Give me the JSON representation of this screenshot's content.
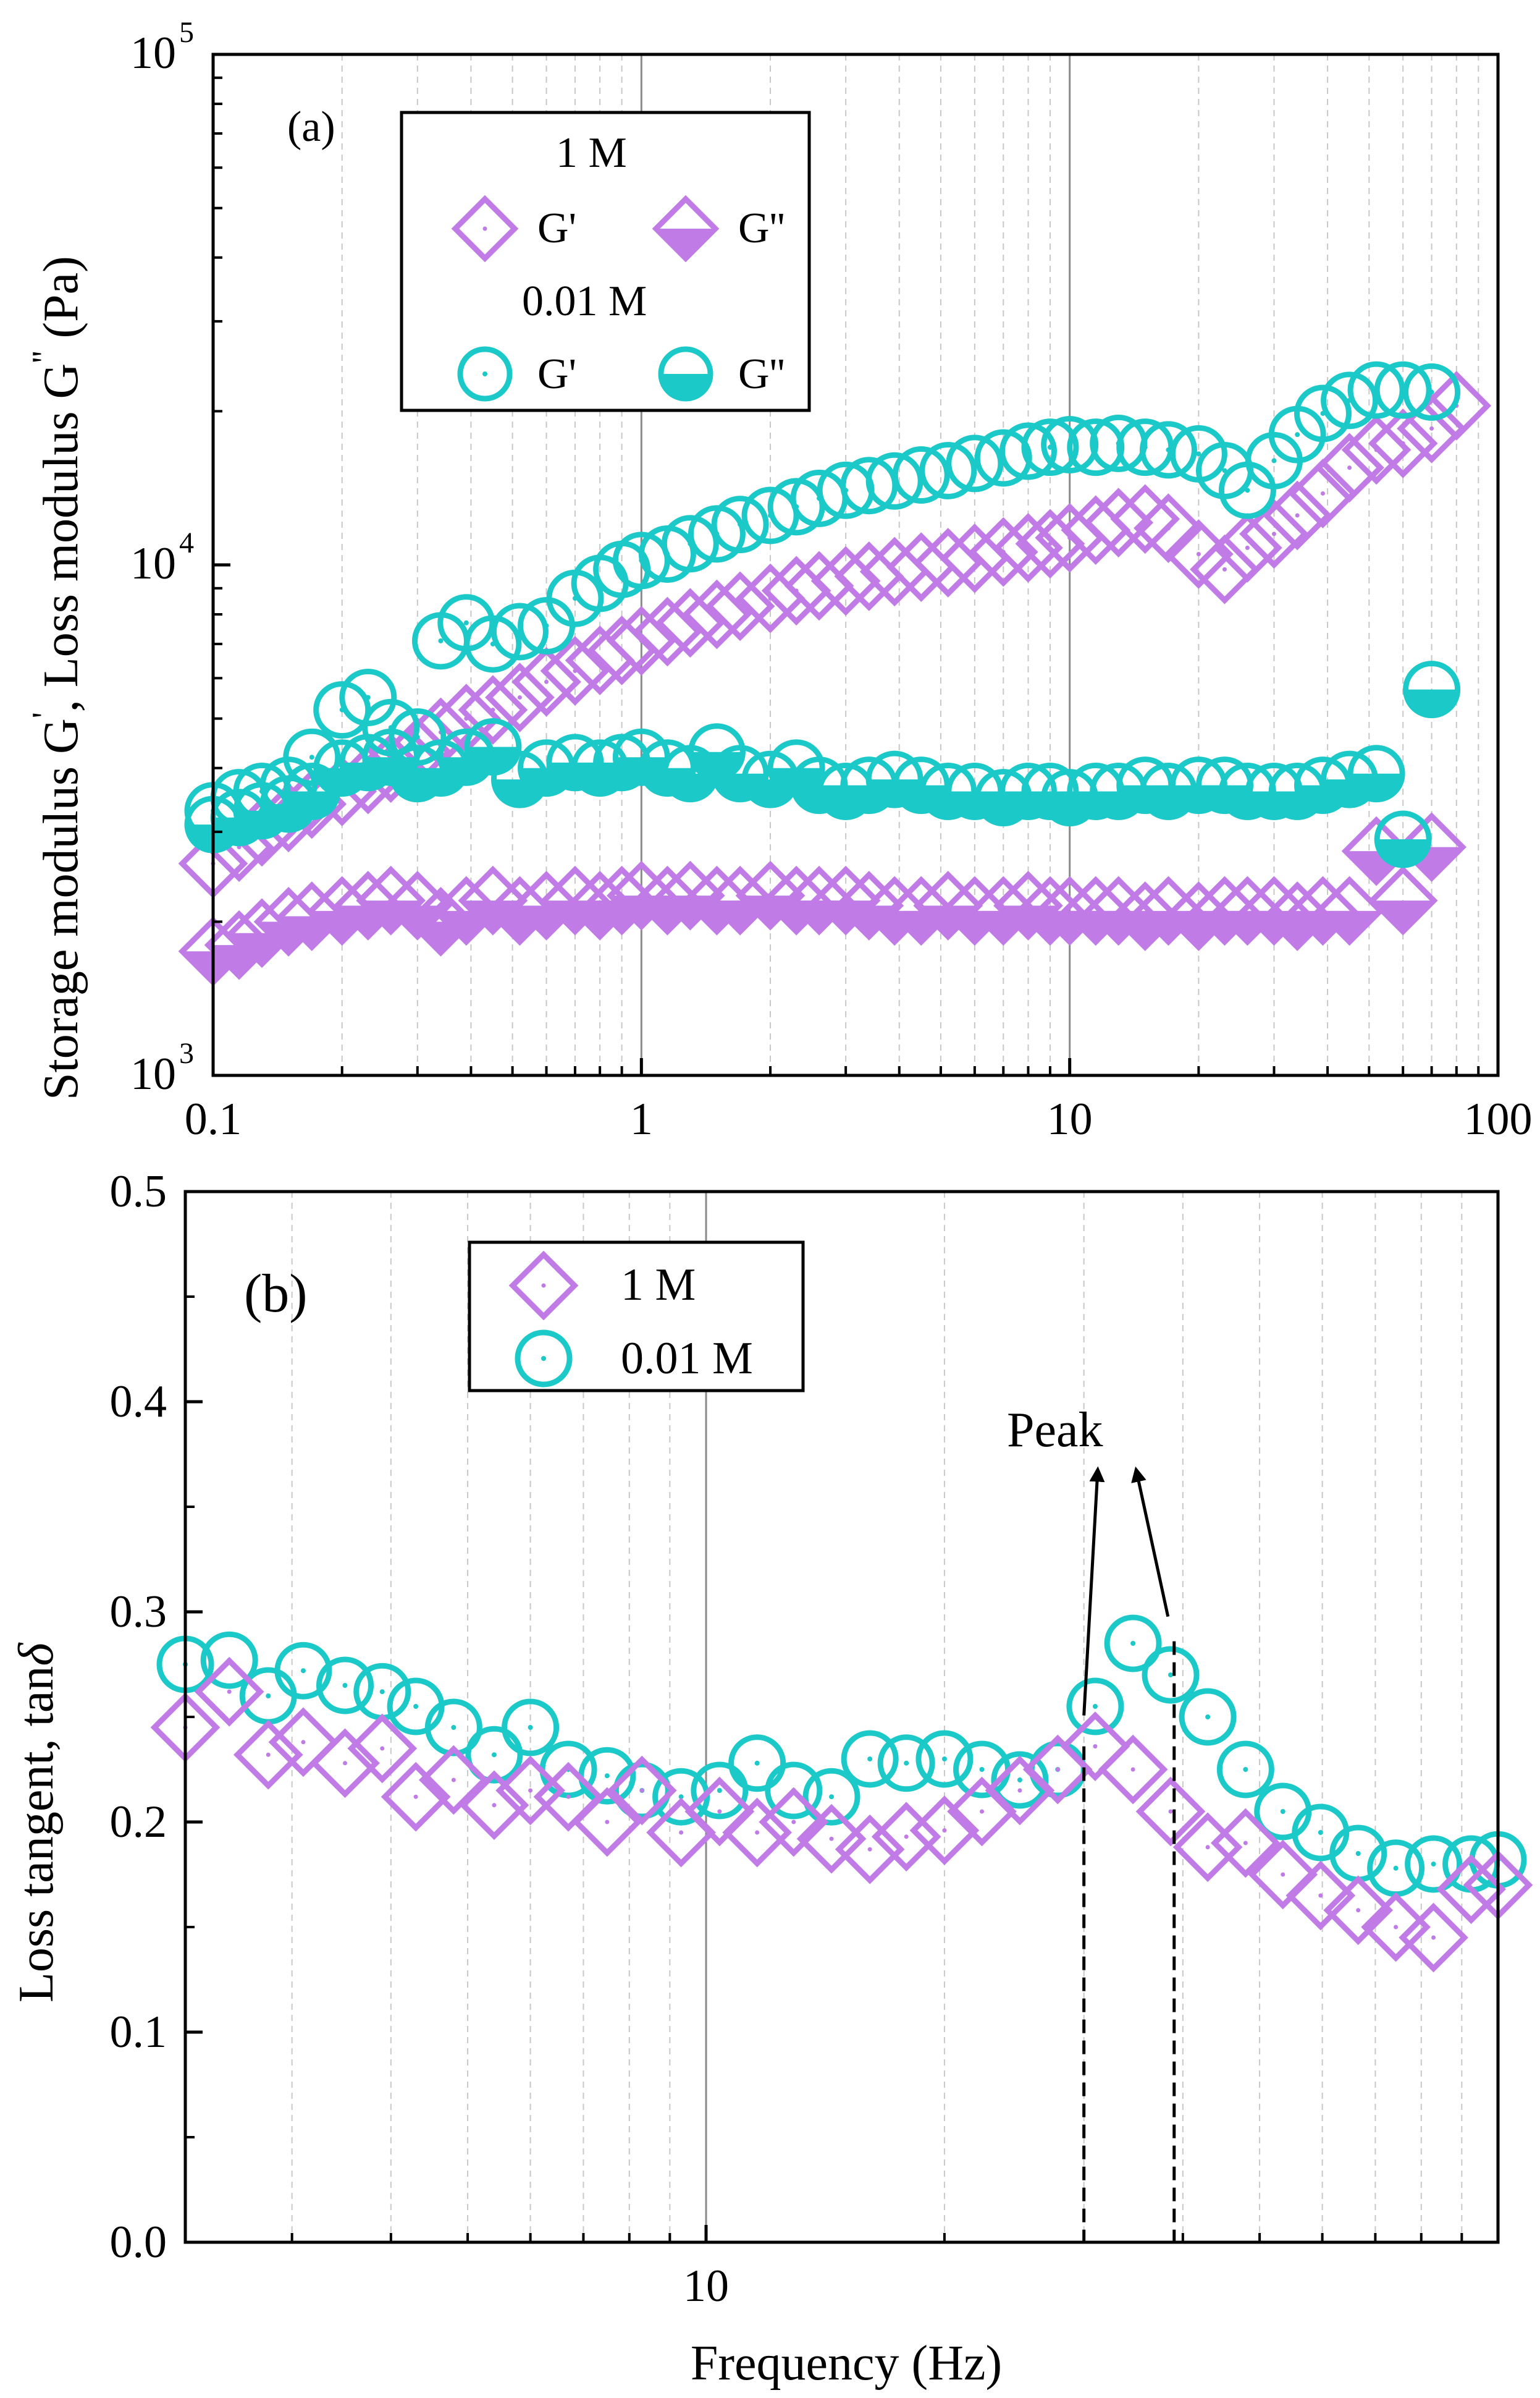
{
  "colors": {
    "purple": "#c17be6",
    "cyan": "#1cc9c9",
    "frame": "#000000",
    "grid": "#c8c8c8",
    "major_grid": "#8a8a8a"
  },
  "chart_data": [
    {
      "panel": "(a)",
      "type": "scatter",
      "xscale": "log",
      "yscale": "log",
      "xlim": [
        0.1,
        100
      ],
      "ylim": [
        1000,
        100000
      ],
      "x_ticks": [
        "0.1",
        "1",
        "10",
        "100"
      ],
      "y_ticks": [
        {
          "base": "10",
          "exp": "3"
        },
        {
          "base": "10",
          "exp": "4"
        },
        {
          "base": "10",
          "exp": "5"
        }
      ],
      "ylabel": "Storage modulus G', Loss modulus G'' (Pa)",
      "ylabel_parts": [
        "Storage modulus G",
        "'",
        ", Loss modulus G",
        "''",
        " (Pa)"
      ],
      "legend_labels": {
        "group1": "1 M",
        "group2": "0.01 M",
        "g_prime": "G'",
        "g_double": "G''"
      },
      "series": [
        {
          "name": "1 M G'",
          "marker": "diamond-open",
          "color": "purple",
          "x": [
            0.1,
            0.115,
            0.13,
            0.15,
            0.17,
            0.2,
            0.23,
            0.26,
            0.3,
            0.34,
            0.39,
            0.45,
            0.52,
            0.6,
            0.7,
            0.8,
            0.9,
            1.0,
            1.15,
            1.3,
            1.5,
            1.7,
            2.0,
            2.3,
            2.6,
            3.0,
            3.4,
            3.9,
            4.5,
            5.2,
            6.0,
            7.0,
            8.0,
            9.0,
            10.0,
            11.5,
            13,
            15,
            17,
            20,
            23,
            26,
            30,
            34,
            39,
            45,
            52,
            60,
            70,
            80
          ],
          "y": [
            2600,
            2800,
            3000,
            3200,
            3400,
            3600,
            3800,
            4000,
            4300,
            4700,
            5000,
            5200,
            5500,
            5900,
            6200,
            6500,
            6800,
            7100,
            7400,
            7700,
            8000,
            8300,
            8600,
            8900,
            9100,
            9300,
            9500,
            9700,
            9900,
            10100,
            10300,
            10600,
            10800,
            11000,
            11300,
            11700,
            12100,
            12300,
            11800,
            10500,
            9800,
            10800,
            11500,
            12500,
            13800,
            15500,
            16800,
            17300,
            18500,
            20500
          ]
        },
        {
          "name": "1 M G''",
          "marker": "diamond-half",
          "color": "purple",
          "x": [
            0.1,
            0.115,
            0.13,
            0.15,
            0.17,
            0.2,
            0.23,
            0.26,
            0.3,
            0.34,
            0.39,
            0.45,
            0.52,
            0.6,
            0.7,
            0.8,
            0.9,
            1.0,
            1.15,
            1.3,
            1.5,
            1.7,
            2.0,
            2.3,
            2.6,
            3.0,
            3.4,
            3.9,
            4.5,
            5.2,
            6.0,
            7.0,
            8.0,
            9.0,
            10.0,
            11.5,
            13,
            15,
            17,
            20,
            23,
            26,
            30,
            34,
            39,
            45,
            52,
            60,
            70
          ],
          "y": [
            1750,
            1800,
            1900,
            2000,
            2050,
            2100,
            2150,
            2200,
            2150,
            2000,
            2100,
            2200,
            2100,
            2150,
            2200,
            2150,
            2200,
            2250,
            2200,
            2250,
            2200,
            2200,
            2250,
            2200,
            2200,
            2200,
            2150,
            2100,
            2100,
            2150,
            2100,
            2100,
            2150,
            2100,
            2100,
            2100,
            2100,
            2050,
            2100,
            2050,
            2100,
            2100,
            2100,
            2050,
            2100,
            2100,
            2750,
            2200,
            2800
          ]
        },
        {
          "name": "0.01 M G'",
          "marker": "circle-open",
          "color": "cyan",
          "x": [
            0.1,
            0.115,
            0.13,
            0.15,
            0.17,
            0.2,
            0.23,
            0.26,
            0.3,
            0.34,
            0.39,
            0.45,
            0.52,
            0.6,
            0.7,
            0.8,
            0.9,
            1.0,
            1.15,
            1.3,
            1.5,
            1.7,
            2.0,
            2.3,
            2.6,
            3.0,
            3.4,
            3.9,
            4.5,
            5.2,
            6.0,
            7.0,
            8.0,
            9.0,
            10.0,
            11.5,
            13,
            15,
            17,
            20,
            23,
            26,
            30,
            34,
            39,
            45,
            52,
            60,
            70
          ],
          "y": [
            3300,
            3500,
            3600,
            3700,
            4200,
            5200,
            5500,
            4800,
            4600,
            7100,
            7700,
            7000,
            7400,
            7600,
            8600,
            9200,
            9800,
            10200,
            10500,
            11000,
            11500,
            12000,
            12500,
            13000,
            13500,
            14000,
            14300,
            14600,
            15000,
            15300,
            15800,
            16200,
            16700,
            17000,
            17200,
            17000,
            17300,
            17000,
            16800,
            16500,
            15300,
            14000,
            16000,
            18000,
            19800,
            21000,
            22000,
            22000,
            21800
          ]
        },
        {
          "name": "0.01 M G''",
          "marker": "circle-half",
          "color": "cyan",
          "x": [
            0.1,
            0.115,
            0.13,
            0.15,
            0.17,
            0.2,
            0.23,
            0.26,
            0.3,
            0.34,
            0.39,
            0.45,
            0.52,
            0.6,
            0.7,
            0.8,
            0.9,
            1.0,
            1.15,
            1.3,
            1.5,
            1.7,
            2.0,
            2.3,
            2.6,
            3.0,
            3.4,
            3.9,
            4.5,
            5.2,
            6.0,
            7.0,
            8.0,
            9.0,
            10.0,
            11.5,
            13,
            15,
            17,
            20,
            23,
            26,
            30,
            34,
            39,
            45,
            52,
            60,
            70
          ],
          "y": [
            3100,
            3200,
            3300,
            3400,
            3600,
            4000,
            4100,
            4200,
            3900,
            4000,
            4200,
            4400,
            3800,
            4000,
            4100,
            4000,
            4100,
            4200,
            4000,
            3900,
            4300,
            3900,
            3800,
            4000,
            3700,
            3600,
            3700,
            3800,
            3700,
            3600,
            3600,
            3500,
            3600,
            3600,
            3500,
            3600,
            3600,
            3700,
            3600,
            3700,
            3700,
            3600,
            3600,
            3600,
            3700,
            3800,
            3900,
            2900,
            5700
          ]
        }
      ]
    },
    {
      "panel": "(b)",
      "type": "scatter",
      "xscale": "log",
      "xlim": [
        2.2,
        100
      ],
      "ylim": [
        0.0,
        0.5
      ],
      "x_ticks": [
        "10"
      ],
      "y_ticks": [
        "0.0",
        "0.1",
        "0.2",
        "0.3",
        "0.4",
        "0.5"
      ],
      "xlabel": "Frequency (Hz)",
      "ylabel": "Loss tangent, tan",
      "ylabel_symbol": "δ",
      "legend": [
        "1 M",
        "0.01 M"
      ],
      "annotation": {
        "text": "Peak",
        "peak_1M_x": 30.0,
        "peak_001M_x": 39.0
      },
      "series": [
        {
          "name": "1 M",
          "marker": "diamond-open",
          "color": "purple",
          "x": [
            2.2,
            2.5,
            2.8,
            3.1,
            3.5,
            3.9,
            4.3,
            4.8,
            5.4,
            6.0,
            6.7,
            7.5,
            8.3,
            9.3,
            10.4,
            11.6,
            12.9,
            14.4,
            16.1,
            17.9,
            20.0,
            22.3,
            24.9,
            27.8,
            31.0,
            34.6,
            38.6,
            43.0,
            48.0,
            53.5,
            59.7,
            66.6,
            74.3,
            82.9,
            92.5,
            100
          ],
          "y": [
            0.245,
            0.262,
            0.232,
            0.238,
            0.228,
            0.235,
            0.212,
            0.22,
            0.208,
            0.215,
            0.212,
            0.2,
            0.215,
            0.195,
            0.205,
            0.195,
            0.2,
            0.192,
            0.187,
            0.193,
            0.196,
            0.205,
            0.215,
            0.225,
            0.236,
            0.225,
            0.205,
            0.188,
            0.19,
            0.175,
            0.165,
            0.158,
            0.15,
            0.145,
            0.168,
            0.17
          ]
        },
        {
          "name": "0.01 M",
          "marker": "circle-open",
          "color": "cyan",
          "x": [
            2.2,
            2.5,
            2.8,
            3.1,
            3.5,
            3.9,
            4.3,
            4.8,
            5.4,
            6.0,
            6.7,
            7.5,
            8.3,
            9.3,
            10.4,
            11.6,
            12.9,
            14.4,
            16.1,
            17.9,
            20.0,
            22.3,
            24.9,
            27.8,
            31.0,
            34.6,
            38.6,
            43.0,
            48.0,
            53.5,
            59.7,
            66.6,
            74.3,
            82.9,
            92.5,
            100
          ],
          "y": [
            0.275,
            0.277,
            0.26,
            0.272,
            0.265,
            0.262,
            0.255,
            0.245,
            0.232,
            0.245,
            0.225,
            0.222,
            0.215,
            0.212,
            0.215,
            0.228,
            0.215,
            0.212,
            0.23,
            0.228,
            0.23,
            0.225,
            0.22,
            0.225,
            0.255,
            0.285,
            0.27,
            0.25,
            0.225,
            0.205,
            0.195,
            0.185,
            0.178,
            0.18,
            0.18,
            0.182
          ]
        }
      ]
    }
  ]
}
